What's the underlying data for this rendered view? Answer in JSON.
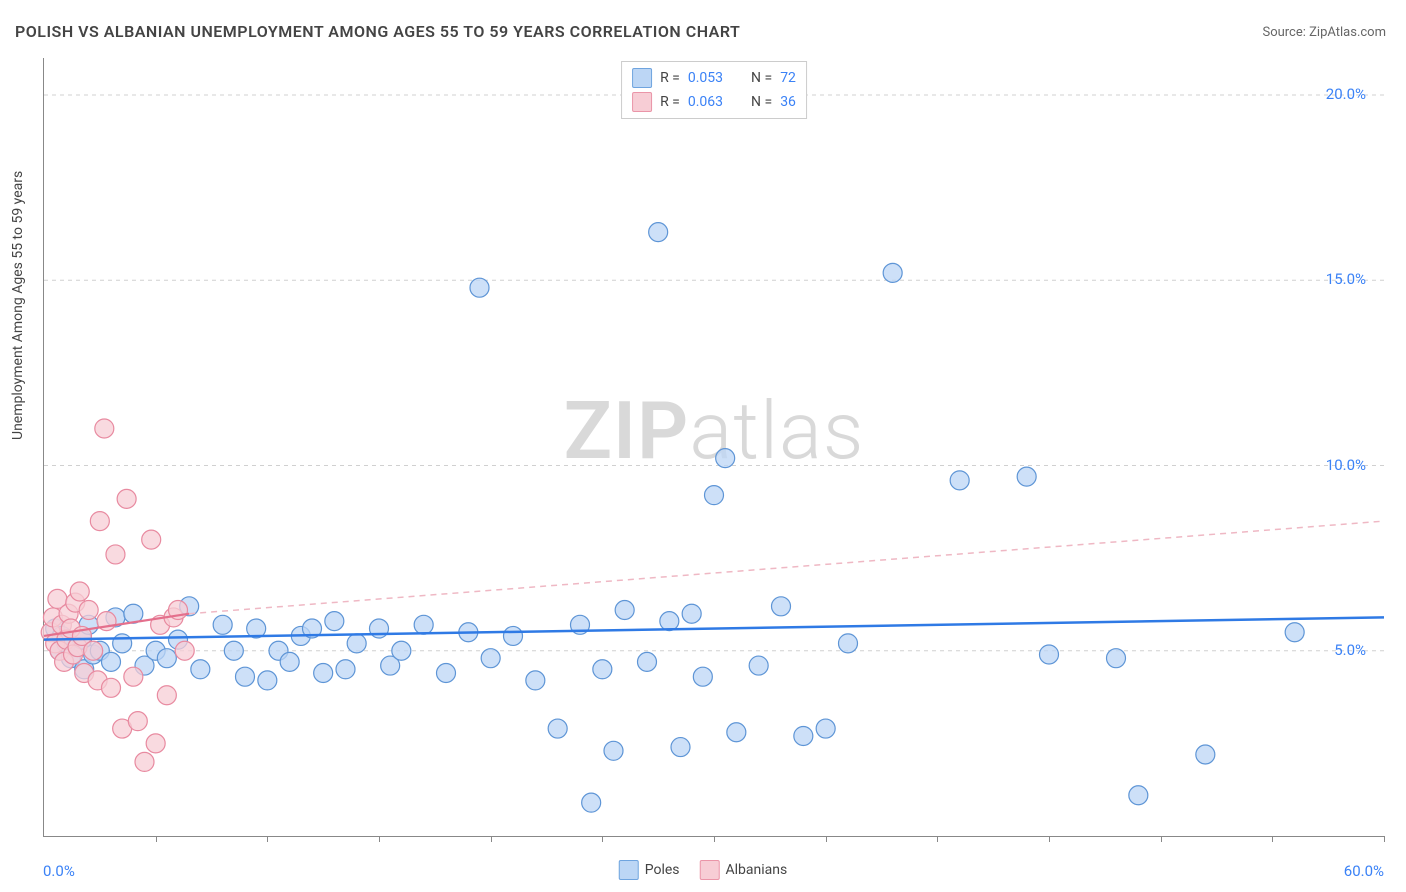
{
  "title": "POLISH VS ALBANIAN UNEMPLOYMENT AMONG AGES 55 TO 59 YEARS CORRELATION CHART",
  "source_label": "Source: ",
  "source_name": "ZipAtlas.com",
  "y_axis_label": "Unemployment Among Ages 55 to 59 years",
  "watermark_bold": "ZIP",
  "watermark_light": "atlas",
  "chart": {
    "type": "scatter",
    "xlim": [
      0,
      60
    ],
    "ylim": [
      0,
      21
    ],
    "x_label_min": "0.0%",
    "x_label_max": "60.0%",
    "x_ticks": [
      5,
      10,
      15,
      20,
      25,
      30,
      35,
      40,
      45,
      50,
      55,
      60
    ],
    "y_ticks": [
      {
        "v": 5,
        "label": "5.0%"
      },
      {
        "v": 10,
        "label": "10.0%"
      },
      {
        "v": 15,
        "label": "15.0%"
      },
      {
        "v": 20,
        "label": "20.0%"
      }
    ],
    "grid_color": "#d0d0d0",
    "background_color": "#ffffff",
    "marker_radius": 9.5,
    "marker_stroke_width": 1.2,
    "series": [
      {
        "name": "Poles",
        "fill": "#bcd6f5",
        "stroke": "#5e95d6",
        "swatch_fill": "#bcd6f5",
        "swatch_stroke": "#6fa4df",
        "R": "0.053",
        "N": "72",
        "trend": {
          "x1": 0,
          "y1": 5.3,
          "x2": 60,
          "y2": 5.9,
          "color": "#2f7ae5",
          "width": 2.5,
          "dash": "none"
        },
        "points": [
          [
            0.5,
            5.6
          ],
          [
            0.7,
            5.0
          ],
          [
            0.8,
            5.4
          ],
          [
            1.0,
            5.2
          ],
          [
            1.2,
            4.8
          ],
          [
            1.5,
            5.1
          ],
          [
            1.7,
            5.3
          ],
          [
            1.8,
            4.5
          ],
          [
            2.0,
            5.7
          ],
          [
            2.2,
            4.9
          ],
          [
            2.5,
            5.0
          ],
          [
            3.0,
            4.7
          ],
          [
            3.2,
            5.9
          ],
          [
            3.5,
            5.2
          ],
          [
            4.0,
            6.0
          ],
          [
            4.5,
            4.6
          ],
          [
            5.0,
            5.0
          ],
          [
            5.5,
            4.8
          ],
          [
            6.0,
            5.3
          ],
          [
            6.5,
            6.2
          ],
          [
            7.0,
            4.5
          ],
          [
            8.0,
            5.7
          ],
          [
            8.5,
            5.0
          ],
          [
            9.0,
            4.3
          ],
          [
            9.5,
            5.6
          ],
          [
            10.0,
            4.2
          ],
          [
            10.5,
            5.0
          ],
          [
            11.0,
            4.7
          ],
          [
            11.5,
            5.4
          ],
          [
            12.0,
            5.6
          ],
          [
            12.5,
            4.4
          ],
          [
            13.0,
            5.8
          ],
          [
            13.5,
            4.5
          ],
          [
            14.0,
            5.2
          ],
          [
            15.0,
            5.6
          ],
          [
            15.5,
            4.6
          ],
          [
            16.0,
            5.0
          ],
          [
            17.0,
            5.7
          ],
          [
            18.0,
            4.4
          ],
          [
            19.0,
            5.5
          ],
          [
            19.5,
            14.8
          ],
          [
            20.0,
            4.8
          ],
          [
            21.0,
            5.4
          ],
          [
            22.0,
            4.2
          ],
          [
            23.0,
            2.9
          ],
          [
            24.0,
            5.7
          ],
          [
            24.5,
            0.9
          ],
          [
            25.0,
            4.5
          ],
          [
            25.5,
            2.3
          ],
          [
            26.0,
            6.1
          ],
          [
            27.0,
            4.7
          ],
          [
            27.5,
            16.3
          ],
          [
            28.0,
            5.8
          ],
          [
            28.5,
            2.4
          ],
          [
            29.0,
            6.0
          ],
          [
            29.5,
            4.3
          ],
          [
            30.0,
            9.2
          ],
          [
            30.5,
            10.2
          ],
          [
            31.0,
            2.8
          ],
          [
            32.0,
            4.6
          ],
          [
            33.0,
            6.2
          ],
          [
            34.0,
            2.7
          ],
          [
            35.0,
            2.9
          ],
          [
            36.0,
            5.2
          ],
          [
            38.0,
            15.2
          ],
          [
            41.0,
            9.6
          ],
          [
            44.0,
            9.7
          ],
          [
            45.0,
            4.9
          ],
          [
            48.0,
            4.8
          ],
          [
            49.0,
            1.1
          ],
          [
            52.0,
            2.2
          ],
          [
            56.0,
            5.5
          ]
        ]
      },
      {
        "name": "Albanians",
        "fill": "#f7cdd5",
        "stroke": "#e88aa0",
        "swatch_fill": "#f7cdd5",
        "swatch_stroke": "#ea95a8",
        "R": "0.063",
        "N": "36",
        "trend_solid": {
          "x1": 0,
          "y1": 5.4,
          "x2": 6.5,
          "y2": 6.0,
          "color": "#e46f8c",
          "width": 2.2
        },
        "trend_dash": {
          "x1": 6.5,
          "y1": 6.0,
          "x2": 60,
          "y2": 8.5,
          "color": "#efb8c4",
          "width": 1.5,
          "dash": "6,5"
        },
        "points": [
          [
            0.3,
            5.5
          ],
          [
            0.4,
            5.9
          ],
          [
            0.5,
            5.2
          ],
          [
            0.6,
            6.4
          ],
          [
            0.7,
            5.0
          ],
          [
            0.8,
            5.7
          ],
          [
            0.9,
            4.7
          ],
          [
            1.0,
            5.3
          ],
          [
            1.1,
            6.0
          ],
          [
            1.2,
            5.6
          ],
          [
            1.3,
            4.9
          ],
          [
            1.4,
            6.3
          ],
          [
            1.5,
            5.1
          ],
          [
            1.6,
            6.6
          ],
          [
            1.7,
            5.4
          ],
          [
            1.8,
            4.4
          ],
          [
            2.0,
            6.1
          ],
          [
            2.2,
            5.0
          ],
          [
            2.4,
            4.2
          ],
          [
            2.5,
            8.5
          ],
          [
            2.7,
            11.0
          ],
          [
            2.8,
            5.8
          ],
          [
            3.0,
            4.0
          ],
          [
            3.2,
            7.6
          ],
          [
            3.5,
            2.9
          ],
          [
            3.7,
            9.1
          ],
          [
            4.0,
            4.3
          ],
          [
            4.2,
            3.1
          ],
          [
            4.5,
            2.0
          ],
          [
            4.8,
            8.0
          ],
          [
            5.0,
            2.5
          ],
          [
            5.2,
            5.7
          ],
          [
            5.5,
            3.8
          ],
          [
            5.8,
            5.9
          ],
          [
            6.0,
            6.1
          ],
          [
            6.3,
            5.0
          ]
        ]
      }
    ]
  },
  "legend_bottom": [
    {
      "label": "Poles",
      "fill": "#bcd6f5",
      "stroke": "#6fa4df"
    },
    {
      "label": "Albanians",
      "fill": "#f7cdd5",
      "stroke": "#ea95a8"
    }
  ]
}
